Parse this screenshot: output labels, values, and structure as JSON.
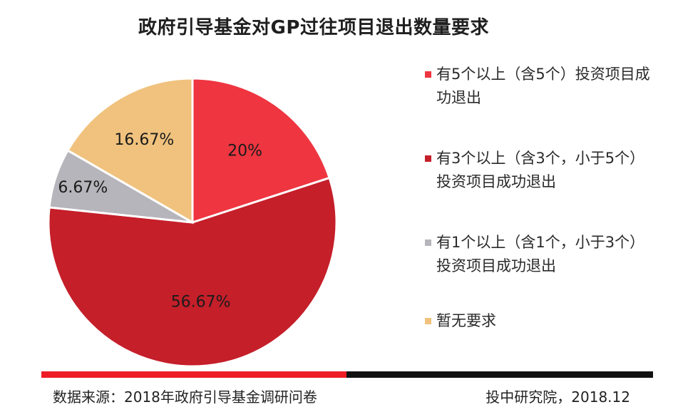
{
  "chart_data": {
    "type": "pie",
    "title": "政府引导基金对GP过往项目退出数量要求",
    "slices": [
      {
        "label": "有5个以上（含5个）投资项目成功退出",
        "value": 20,
        "value_label": "20%",
        "color": "#EE3540"
      },
      {
        "label": "有3个以上（含3个，小于5个）投资项目成功退出",
        "value": 56.67,
        "value_label": "56.67%",
        "color": "#C51F2A"
      },
      {
        "label": "有1个以上（含1个，小于3个）投资项目成功退出",
        "value": 6.67,
        "value_label": "6.67%",
        "color": "#B5B5BB"
      },
      {
        "label": "暂无要求",
        "value": 16.67,
        "value_label": "16.67%",
        "color": "#F0C27D"
      }
    ],
    "legend_position": "right"
  },
  "footer": {
    "source": "数据来源：2018年政府引导基金调研问卷",
    "credit": "投中研究院，2018.12",
    "bar_colors": [
      "#EE1C25",
      "#111111"
    ]
  }
}
